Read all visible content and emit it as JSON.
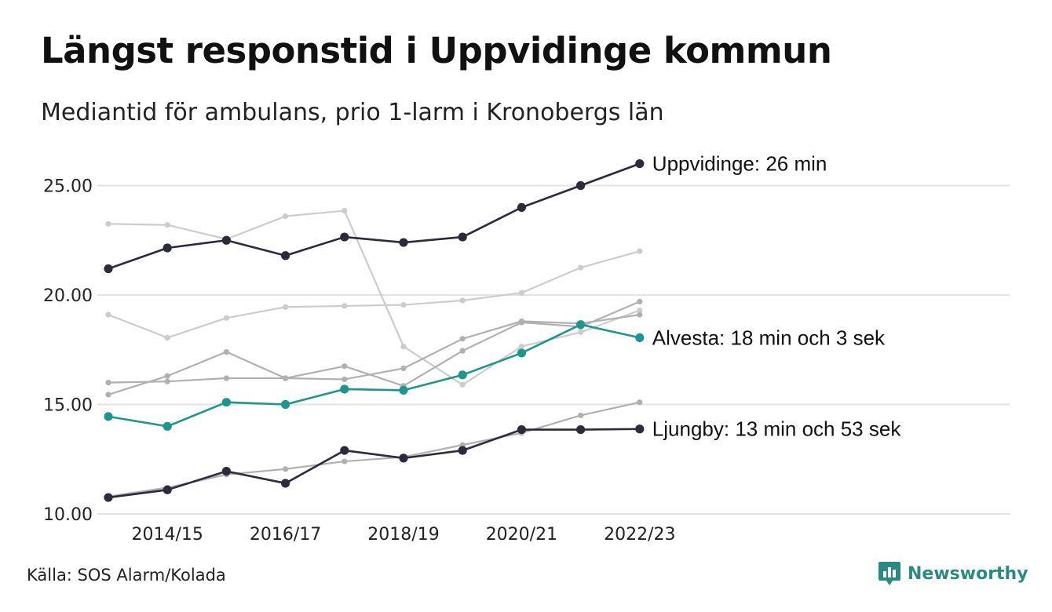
{
  "title": "Längst responstid i Uppvidinge kommun",
  "subtitle": "Mediantid för ambulans, prio 1-larm i Kronobergs län",
  "source": "Källa: SOS Alarm/Kolada",
  "brand": "Newsworthy",
  "colors": {
    "highlight_dark": "#2b2b3b",
    "highlight_teal": "#1f968b",
    "other_light": "#cccccc",
    "other_mid": "#b0b0b0",
    "grid": "#e3e3e3"
  },
  "chart_data": {
    "type": "line",
    "x": [
      "2013/14",
      "2014/15",
      "2015/16",
      "2016/17",
      "2017/18",
      "2018/19",
      "2019/20",
      "2020/21",
      "2021/22",
      "2022/23"
    ],
    "xticks": [
      "2014/15",
      "2016/17",
      "2018/19",
      "2020/21",
      "2022/23"
    ],
    "yticks": [
      "10.00",
      "15.00",
      "20.00",
      "25.00"
    ],
    "ylim": [
      10,
      27
    ],
    "grid": true,
    "series": [
      {
        "role": "other",
        "shade": "light",
        "values": [
          23.25,
          23.2,
          22.55,
          23.6,
          23.85,
          17.65,
          15.9,
          17.65,
          18.3,
          19.3
        ]
      },
      {
        "role": "other",
        "shade": "light",
        "values": [
          19.1,
          18.05,
          18.95,
          19.45,
          19.5,
          19.55,
          19.75,
          20.1,
          21.25,
          22.0
        ]
      },
      {
        "role": "other",
        "shade": "mid",
        "values": [
          15.45,
          16.3,
          17.4,
          16.2,
          16.75,
          15.85,
          17.45,
          18.75,
          18.55,
          19.7
        ]
      },
      {
        "role": "other",
        "shade": "mid",
        "values": [
          16.0,
          16.05,
          16.2,
          16.2,
          16.15,
          16.65,
          18.0,
          18.8,
          18.7,
          19.1
        ]
      },
      {
        "role": "other",
        "shade": "mid",
        "values": [
          10.8,
          11.2,
          11.8,
          12.05,
          12.4,
          12.6,
          13.15,
          13.7,
          14.5,
          15.1
        ]
      },
      {
        "role": "highlight",
        "name": "Uppvidinge",
        "label": "Uppvidinge: 26 min",
        "color": "dark",
        "values": [
          21.2,
          22.15,
          22.5,
          21.8,
          22.65,
          22.4,
          22.65,
          24.0,
          25.0,
          26.0
        ]
      },
      {
        "role": "highlight",
        "name": "Alvesta",
        "label": "Alvesta: 18 min och 3 sek",
        "color": "teal",
        "values": [
          14.45,
          14.0,
          15.1,
          15.0,
          15.7,
          15.65,
          16.35,
          17.35,
          18.65,
          18.05
        ]
      },
      {
        "role": "highlight",
        "name": "Ljungby",
        "label": "Ljungby: 13 min och 53 sek",
        "color": "dark",
        "values": [
          10.75,
          11.1,
          11.95,
          11.4,
          12.9,
          12.55,
          12.9,
          13.85,
          13.85,
          13.88
        ]
      }
    ]
  }
}
